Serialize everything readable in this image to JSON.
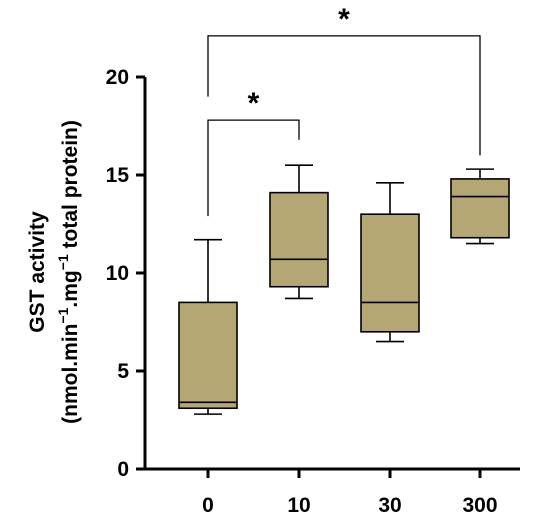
{
  "chart_data": {
    "type": "box",
    "ylabel_line1": "GST activity",
    "ylabel_line2": {
      "parts": [
        "(nmol.min",
        "−1",
        ".mg",
        "−1",
        " total protein)"
      ]
    },
    "xlabel": "",
    "categories": [
      "0",
      "10",
      "30",
      "300"
    ],
    "ylim": [
      0,
      20
    ],
    "yticks": [
      "0",
      "5",
      "10",
      "15",
      "20"
    ],
    "boxes": [
      {
        "category": "0",
        "min": 2.8,
        "q1": 3.1,
        "median": 3.4,
        "q3": 8.5,
        "max": 11.7
      },
      {
        "category": "10",
        "min": 8.7,
        "q1": 9.3,
        "median": 10.7,
        "q3": 14.1,
        "max": 15.5
      },
      {
        "category": "30",
        "min": 6.5,
        "q1": 7.0,
        "median": 8.5,
        "q3": 13.0,
        "max": 14.6
      },
      {
        "category": "300",
        "min": 11.5,
        "q1": 11.8,
        "median": 13.9,
        "q3": 14.8,
        "max": 15.3
      }
    ],
    "significance": [
      {
        "from": "0",
        "to": "10",
        "label": "*",
        "bracket_y": 17.8,
        "from_drop": 12.9,
        "to_drop": 16.8
      },
      {
        "from": "0",
        "to": "300",
        "label": "*",
        "bracket_y": 22.1,
        "from_drop": 19.0,
        "to_drop": 16.0
      }
    ],
    "box_color": "#b5a775",
    "grid": false,
    "legend": "none"
  }
}
